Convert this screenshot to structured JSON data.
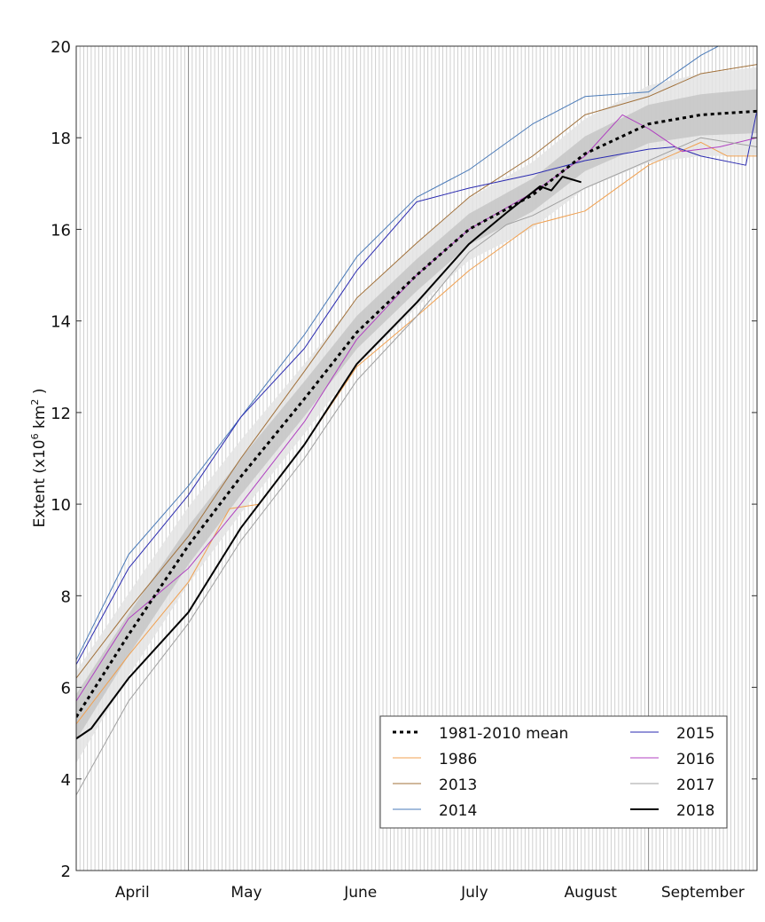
{
  "chart_data": {
    "type": "line",
    "title": "",
    "xlabel": "",
    "ylabel": "Extent (x10",
    "ylabel_sup1": "6",
    "ylabel_mid": " km",
    "ylabel_sup2": "2",
    "ylabel_end": " )",
    "ylim": [
      2,
      20
    ],
    "yticks": [
      2,
      4,
      6,
      8,
      10,
      12,
      14,
      16,
      18,
      20
    ],
    "xlim": [
      "04-01",
      "09-30"
    ],
    "month_labels": [
      {
        "label": "April",
        "start": "04-01",
        "end": "05-01"
      },
      {
        "label": "May",
        "start": "05-01",
        "end": "06-01"
      },
      {
        "label": "June",
        "start": "06-01",
        "end": "07-01"
      },
      {
        "label": "July",
        "start": "07-01",
        "end": "08-01"
      },
      {
        "label": "August",
        "start": "08-01",
        "end": "09-01"
      },
      {
        "label": "September",
        "start": "09-01",
        "end": "09-30"
      }
    ],
    "grid": "daily vertical lines",
    "legend_placement": "lower-right",
    "bands": {
      "name": "1981-2010 spread (inner ±1 std, outer ±2 std)",
      "x": [
        "04-01",
        "04-15",
        "05-01",
        "05-15",
        "06-01",
        "06-15",
        "07-01",
        "07-15",
        "08-01",
        "08-15",
        "09-01",
        "09-15",
        "09-30"
      ],
      "std": [
        0.5,
        0.45,
        0.42,
        0.4,
        0.38,
        0.36,
        0.35,
        0.34,
        0.36,
        0.38,
        0.42,
        0.45,
        0.48
      ],
      "inner_color": "#c8c8c8",
      "outer_color": "#e4e4e4"
    },
    "series": [
      {
        "name": "1981-2010 mean",
        "color": "#000000",
        "style": "dotted",
        "width": 3,
        "x": [
          "04-01",
          "04-15",
          "05-01",
          "05-15",
          "06-01",
          "06-15",
          "07-01",
          "07-15",
          "08-01",
          "08-15",
          "09-01",
          "09-15",
          "09-30"
        ],
        "y": [
          5.35,
          7.15,
          9.1,
          10.6,
          12.3,
          13.75,
          15.0,
          16.0,
          16.75,
          17.65,
          18.3,
          18.5,
          18.58
        ]
      },
      {
        "name": "1986",
        "color": "#f0a050",
        "style": "solid",
        "width": 1,
        "x": [
          "04-01",
          "04-15",
          "05-01",
          "05-12",
          "05-20",
          "06-01",
          "06-15",
          "07-01",
          "07-15",
          "08-01",
          "08-15",
          "09-01",
          "09-15",
          "09-22",
          "09-30"
        ],
        "y": [
          5.2,
          6.7,
          8.3,
          9.9,
          10.0,
          11.3,
          13.0,
          14.1,
          15.1,
          16.1,
          16.4,
          17.4,
          17.9,
          17.6,
          17.6
        ]
      },
      {
        "name": "2013",
        "color": "#a0703a",
        "style": "solid",
        "width": 1,
        "x": [
          "04-01",
          "04-15",
          "05-01",
          "05-15",
          "06-01",
          "06-15",
          "07-01",
          "07-15",
          "08-01",
          "08-15",
          "09-01",
          "09-15",
          "09-30"
        ],
        "y": [
          6.2,
          7.7,
          9.3,
          11.0,
          12.9,
          14.5,
          15.7,
          16.7,
          17.6,
          18.5,
          18.9,
          19.4,
          19.6
        ]
      },
      {
        "name": "2014",
        "color": "#4a7ab8",
        "style": "solid",
        "width": 1,
        "x": [
          "04-01",
          "04-15",
          "05-01",
          "05-15",
          "06-01",
          "06-15",
          "07-01",
          "07-15",
          "08-01",
          "08-15",
          "09-01",
          "09-15",
          "09-22"
        ],
        "y": [
          6.6,
          8.9,
          10.4,
          11.9,
          13.7,
          15.4,
          16.7,
          17.3,
          18.3,
          18.9,
          19.0,
          19.8,
          20.1
        ]
      },
      {
        "name": "2015",
        "color": "#2a2ab0",
        "style": "solid",
        "width": 1,
        "x": [
          "04-01",
          "04-15",
          "05-01",
          "05-15",
          "06-01",
          "06-15",
          "07-01",
          "07-15",
          "08-01",
          "08-15",
          "09-01",
          "09-08",
          "09-15",
          "09-27",
          "09-30"
        ],
        "y": [
          6.5,
          8.6,
          10.2,
          11.9,
          13.4,
          15.1,
          16.6,
          16.9,
          17.2,
          17.5,
          17.75,
          17.8,
          17.6,
          17.4,
          18.6
        ]
      },
      {
        "name": "2016",
        "color": "#b040c0",
        "style": "solid",
        "width": 1,
        "x": [
          "04-01",
          "04-15",
          "05-01",
          "05-15",
          "06-01",
          "06-15",
          "07-01",
          "07-15",
          "08-01",
          "08-15",
          "08-25",
          "09-01",
          "09-10",
          "09-20",
          "09-30"
        ],
        "y": [
          5.7,
          7.5,
          8.6,
          10.0,
          11.8,
          13.6,
          15.0,
          16.0,
          16.8,
          17.6,
          18.5,
          18.2,
          17.7,
          17.8,
          18.0
        ]
      },
      {
        "name": "2017",
        "color": "#a0a0a0",
        "style": "solid",
        "width": 1,
        "x": [
          "04-01",
          "04-15",
          "05-01",
          "05-15",
          "06-01",
          "06-15",
          "07-01",
          "07-15",
          "07-25",
          "08-01",
          "08-15",
          "09-01",
          "09-15",
          "09-30"
        ],
        "y": [
          3.65,
          5.7,
          7.4,
          9.2,
          11.0,
          12.7,
          14.1,
          15.5,
          16.1,
          16.3,
          16.9,
          17.5,
          18.0,
          17.8
        ]
      },
      {
        "name": "2018",
        "color": "#000000",
        "style": "solid",
        "width": 2,
        "x": [
          "04-01",
          "04-05",
          "04-15",
          "05-01",
          "05-15",
          "06-01",
          "06-15",
          "07-01",
          "07-15",
          "07-25",
          "08-03",
          "08-06",
          "08-09",
          "08-14"
        ],
        "y": [
          4.88,
          5.1,
          6.2,
          7.64,
          9.48,
          11.3,
          13.06,
          14.4,
          15.68,
          16.36,
          16.94,
          16.85,
          17.15,
          17.03
        ]
      }
    ]
  }
}
